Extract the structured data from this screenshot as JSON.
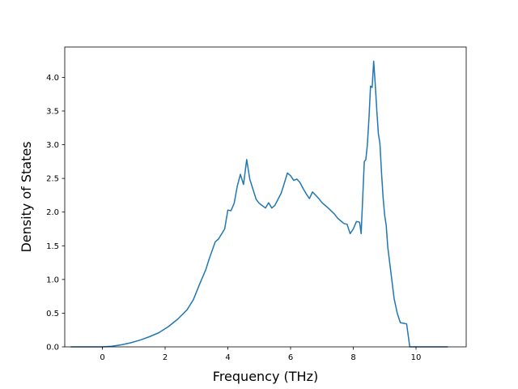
{
  "chart_data": {
    "type": "line",
    "title": "",
    "xlabel": "Frequency (THz)",
    "ylabel": "Density of States",
    "xlim": [
      -1.2,
      11.6
    ],
    "ylim": [
      0,
      4.45
    ],
    "xticks": [
      0,
      2,
      4,
      6,
      8,
      10
    ],
    "yticks": [
      0.0,
      0.5,
      1.0,
      1.5,
      2.0,
      2.5,
      3.0,
      3.5,
      4.0
    ],
    "xtick_labels": [
      "0",
      "2",
      "4",
      "6",
      "8",
      "10"
    ],
    "ytick_labels": [
      "0.0",
      "0.5",
      "1.0",
      "1.5",
      "2.0",
      "2.5",
      "3.0",
      "3.5",
      "4.0"
    ],
    "grid": false,
    "line_color": "#1f77b4",
    "series": [
      {
        "x": [
          -1.0,
          -0.5,
          0.0,
          0.3,
          0.6,
          0.9,
          1.2,
          1.5,
          1.8,
          2.1,
          2.4,
          2.7,
          2.9,
          3.1,
          3.3,
          3.4,
          3.6,
          3.7,
          3.9,
          4.0,
          4.1,
          4.2,
          4.3,
          4.4,
          4.5,
          4.6,
          4.7,
          4.8,
          4.9,
          5.0,
          5.2,
          5.3,
          5.4,
          5.5,
          5.7,
          5.8,
          5.9,
          6.0,
          6.1,
          6.2,
          6.3,
          6.4,
          6.5,
          6.6,
          6.7,
          6.8,
          6.9,
          7.0,
          7.2,
          7.4,
          7.5,
          7.6,
          7.7,
          7.8,
          7.9,
          8.0,
          8.1,
          8.2,
          8.25,
          8.3,
          8.35,
          8.4,
          8.45,
          8.5,
          8.55,
          8.6,
          8.65,
          8.7,
          8.75,
          8.8,
          8.85,
          8.9,
          8.95,
          9.0,
          9.05,
          9.1,
          9.2,
          9.3,
          9.4,
          9.5,
          9.6,
          9.7,
          9.8,
          9.9,
          10.0,
          10.1,
          10.5,
          11.0
        ],
        "y": [
          0.0,
          0.0,
          0.0,
          0.01,
          0.03,
          0.06,
          0.1,
          0.15,
          0.21,
          0.3,
          0.41,
          0.55,
          0.7,
          0.93,
          1.15,
          1.3,
          1.56,
          1.6,
          1.75,
          2.03,
          2.02,
          2.13,
          2.38,
          2.56,
          2.41,
          2.78,
          2.49,
          2.34,
          2.19,
          2.13,
          2.06,
          2.14,
          2.06,
          2.1,
          2.28,
          2.43,
          2.58,
          2.54,
          2.47,
          2.49,
          2.44,
          2.35,
          2.27,
          2.2,
          2.3,
          2.25,
          2.2,
          2.14,
          2.06,
          1.97,
          1.91,
          1.87,
          1.83,
          1.82,
          1.68,
          1.75,
          1.86,
          1.85,
          1.68,
          2.2,
          2.75,
          2.78,
          3.0,
          3.4,
          3.87,
          3.85,
          4.24,
          3.9,
          3.5,
          3.16,
          3.02,
          2.58,
          2.22,
          1.95,
          1.8,
          1.48,
          1.1,
          0.72,
          0.5,
          0.36,
          0.35,
          0.34,
          0.0,
          0.0,
          0.0,
          0.0,
          0.0,
          0.0
        ]
      }
    ]
  }
}
